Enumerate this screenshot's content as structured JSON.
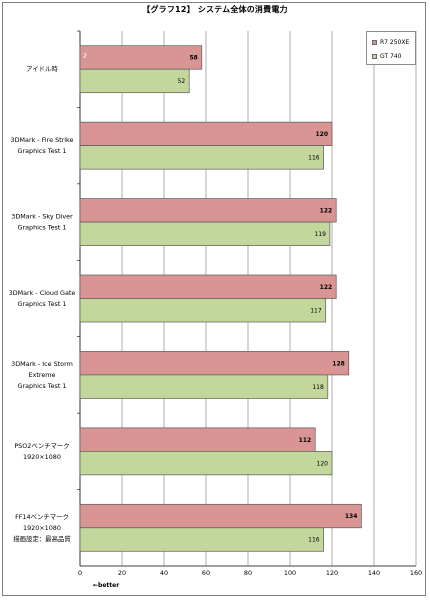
{
  "chart_data": {
    "type": "bar",
    "orientation": "horizontal",
    "title": "【グラフ12】 システム全体の消費電力",
    "categories": [
      "アイドル時",
      "3DMark - Fire Strike\nGraphics Test 1",
      "3DMark - Sky Diver\nGraphics Test 1",
      "3DMark - Cloud Gate\nGraphics Test 1",
      "3DMark - Ice Storm\nExtreme\nGraphics Test 1",
      "PSO2ベンチマーク\n1920×1080",
      "FF14ベンチマーク\n1920×1080\n描画設定：最高品質"
    ],
    "series": [
      {
        "name": "R7 250XE",
        "color": "#d99594",
        "values": [
          58,
          120,
          122,
          122,
          128,
          112,
          134
        ]
      },
      {
        "name": "GT 740",
        "color": "#c3d69b",
        "values": [
          52,
          116,
          119,
          117,
          118,
          120,
          116
        ]
      }
    ],
    "xlim": [
      0,
      160
    ],
    "xticks": [
      0,
      20,
      40,
      60,
      80,
      100,
      120,
      140,
      160
    ],
    "xlabel": "",
    "ylabel": "",
    "grid": true,
    "legend_position": "top-right",
    "annotation": "←better",
    "corner_mark": "2"
  }
}
